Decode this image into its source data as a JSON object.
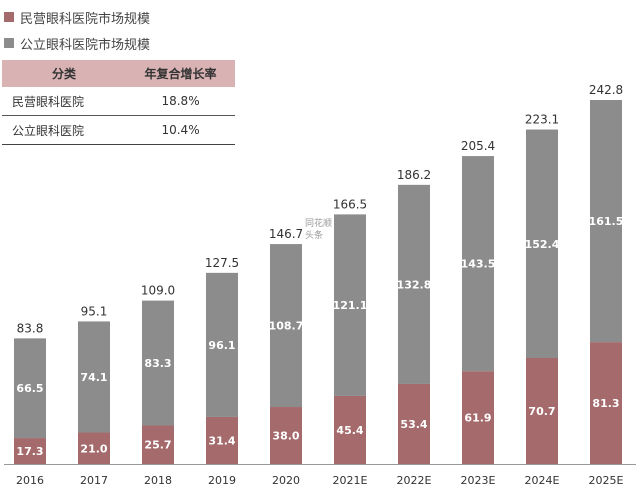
{
  "legend": [
    {
      "label": "民营眼科医院市场规模",
      "color": "#a56a6c"
    },
    {
      "label": "公立眼科医院市场规模",
      "color": "#8c8c8c"
    }
  ],
  "table": {
    "headers": [
      "分类",
      "年复合增长率"
    ],
    "rows": [
      {
        "name": "民营眼科医院",
        "rate": "18.8%"
      },
      {
        "name": "公立眼科医院",
        "rate": "10.4%"
      }
    ]
  },
  "watermark": [
    "同花顺",
    "头条"
  ],
  "chart_data": {
    "type": "bar",
    "stacked": true,
    "categories": [
      "2016",
      "2017",
      "2018",
      "2019",
      "2020",
      "2021E",
      "2022E",
      "2023E",
      "2024E",
      "2025E"
    ],
    "series": [
      {
        "name": "民营眼科医院市场规模",
        "values": [
          17.3,
          21.0,
          25.7,
          31.4,
          38.0,
          45.4,
          53.4,
          61.9,
          70.7,
          81.3
        ],
        "color": "#a56a6c"
      },
      {
        "name": "公立眼科医院市场规模",
        "values": [
          66.5,
          74.1,
          83.3,
          96.1,
          108.7,
          121.1,
          132.8,
          143.5,
          152.4,
          161.5
        ],
        "color": "#8c8c8c"
      }
    ],
    "totals": [
      83.8,
      95.1,
      109.0,
      127.5,
      146.7,
      166.5,
      186.2,
      205.4,
      223.1,
      242.8
    ],
    "series_labels": [
      [
        "17.3",
        "21.0",
        "25.7",
        "31.4",
        "38.0",
        "45.4",
        "53.4",
        "61.9",
        "70.7",
        "81.3"
      ],
      [
        "66.5",
        "74.1",
        "83.3",
        "96.1",
        "108.7",
        "121.1",
        "132.8",
        "143.5",
        "152.4",
        "161.5"
      ]
    ],
    "total_labels": [
      "83.8",
      "95.1",
      "109.0",
      "127.5",
      "146.7",
      "166.5",
      "186.2",
      "205.4",
      "223.1",
      "242.8"
    ],
    "ylim": [
      0,
      242.8
    ],
    "grid": false,
    "legend_position": "top-left"
  }
}
